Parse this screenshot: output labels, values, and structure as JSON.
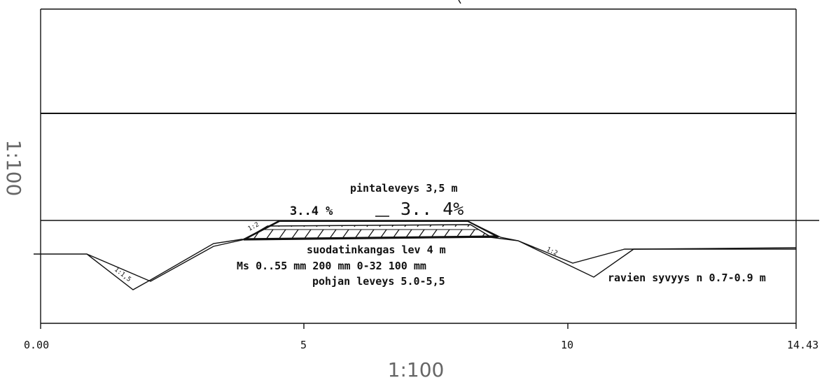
{
  "vertical_scale": "1:100",
  "horizontal_scale": "1:100",
  "axis_ticks": [
    "0.00",
    "5",
    "10",
    "14.43"
  ],
  "labels": {
    "surface_width": "pintaleveys 3,5 m",
    "slope_left": "3..4 %",
    "slope_right": "3.. 4%",
    "fabric": "suodatinkangas lev 4 m",
    "materials": "Ms 0..55 mm 200 mm  0-32 100 mm",
    "base_width": "pohjan leveys 5.0-5,5",
    "ditch_depth": "ravien syvyys n 0.7-0.9 m",
    "slope_ratio_left_ditch": "1:1,5",
    "slope_ratio_embankment": "1:2",
    "slope_ratio_right_ditch": "1:2"
  }
}
